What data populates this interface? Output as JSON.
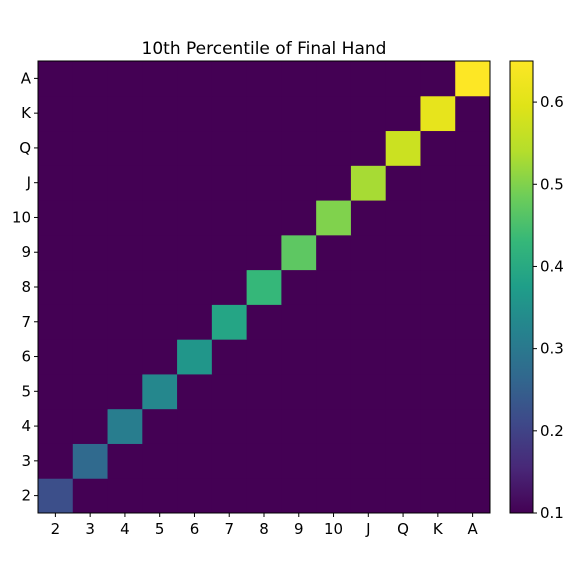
{
  "chart_data": {
    "type": "heatmap",
    "title": "10th Percentile of Final Hand",
    "xlabel": "",
    "ylabel": "",
    "x_categories": [
      "2",
      "3",
      "4",
      "5",
      "6",
      "7",
      "8",
      "9",
      "10",
      "J",
      "Q",
      "K",
      "A"
    ],
    "y_categories": [
      "2",
      "3",
      "4",
      "5",
      "6",
      "7",
      "8",
      "9",
      "10",
      "J",
      "Q",
      "K",
      "A"
    ],
    "values": [
      [
        0.22,
        0.1,
        0.1,
        0.1,
        0.1,
        0.1,
        0.1,
        0.1,
        0.1,
        0.1,
        0.1,
        0.1,
        0.1
      ],
      [
        0.1,
        0.27,
        0.1,
        0.1,
        0.1,
        0.1,
        0.1,
        0.1,
        0.1,
        0.1,
        0.1,
        0.1,
        0.1
      ],
      [
        0.1,
        0.1,
        0.31,
        0.1,
        0.1,
        0.1,
        0.1,
        0.1,
        0.1,
        0.1,
        0.1,
        0.1,
        0.1
      ],
      [
        0.1,
        0.1,
        0.1,
        0.33,
        0.1,
        0.1,
        0.1,
        0.1,
        0.1,
        0.1,
        0.1,
        0.1,
        0.1
      ],
      [
        0.1,
        0.1,
        0.1,
        0.1,
        0.36,
        0.1,
        0.1,
        0.1,
        0.1,
        0.1,
        0.1,
        0.1,
        0.1
      ],
      [
        0.1,
        0.1,
        0.1,
        0.1,
        0.1,
        0.39,
        0.1,
        0.1,
        0.1,
        0.1,
        0.1,
        0.1,
        0.1
      ],
      [
        0.1,
        0.1,
        0.1,
        0.1,
        0.1,
        0.1,
        0.43,
        0.1,
        0.1,
        0.1,
        0.1,
        0.1,
        0.1
      ],
      [
        0.1,
        0.1,
        0.1,
        0.1,
        0.1,
        0.1,
        0.1,
        0.47,
        0.1,
        0.1,
        0.1,
        0.1,
        0.1
      ],
      [
        0.1,
        0.1,
        0.1,
        0.1,
        0.1,
        0.1,
        0.1,
        0.1,
        0.5,
        0.1,
        0.1,
        0.1,
        0.1
      ],
      [
        0.1,
        0.1,
        0.1,
        0.1,
        0.1,
        0.1,
        0.1,
        0.1,
        0.1,
        0.53,
        0.1,
        0.1,
        0.1
      ],
      [
        0.1,
        0.1,
        0.1,
        0.1,
        0.1,
        0.1,
        0.1,
        0.1,
        0.1,
        0.1,
        0.57,
        0.1,
        0.1
      ],
      [
        0.1,
        0.1,
        0.1,
        0.1,
        0.1,
        0.1,
        0.1,
        0.1,
        0.1,
        0.1,
        0.1,
        0.61,
        0.1
      ],
      [
        0.1,
        0.1,
        0.1,
        0.1,
        0.1,
        0.1,
        0.1,
        0.1,
        0.1,
        0.1,
        0.1,
        0.1,
        0.65
      ]
    ],
    "colorscale": "viridis",
    "vmin": 0.1,
    "vmax": 0.65,
    "colorbar_ticks": [
      "0.1",
      "0.2",
      "0.3",
      "0.4",
      "0.5",
      "0.6"
    ],
    "legend": "colorbar-right",
    "grid": false
  }
}
